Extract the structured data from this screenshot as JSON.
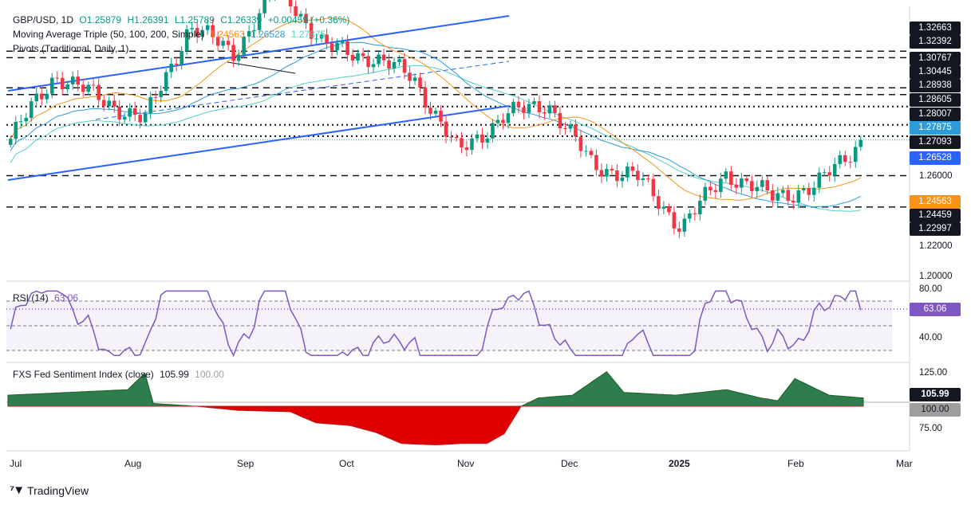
{
  "header": {
    "symbol": "GBP/USD, 1D",
    "ohlc": {
      "o": "O1.25879",
      "h": "H1.26391",
      "l": "L1.25789",
      "c": "C1.26339",
      "chg": "+0.00459 (+0.36%)"
    },
    "ma_label": "Moving Average Triple (50, 100, 200, Simple)",
    "ma_values": [
      "1.24563",
      "1.26528",
      "1.27875"
    ],
    "pivots_label": "Pivots (Traditional, Daily, 1)",
    "rsi_label": "RSI (14)",
    "rsi_value": "63.06",
    "fxs_label": "FXS Fed Sentiment Index (close)",
    "fxs_value": "105.99",
    "fxs_base": "100.00"
  },
  "colors": {
    "up": "#089981",
    "down": "#f23645",
    "ma50": "#f7931a",
    "ma100": "#2d9cdb",
    "ma200": "#4fd1c5",
    "trend": "#2962ff",
    "rsi": "#7e57c2",
    "fxs_pos": "#2e7d4f",
    "fxs_neg": "#e00000"
  },
  "axes": {
    "price_labels": [
      "1.32663",
      "1.32392",
      "1.30767",
      "1.30445",
      "1.28938",
      "1.28605",
      "1.28007",
      "1.27875",
      "1.27093",
      "1.26528",
      "1.26000",
      "1.24563",
      "1.24459",
      "1.22997",
      "1.22000",
      "1.20000"
    ],
    "rsi_labels": [
      "80.00",
      "40.00"
    ],
    "fxs_labels": [
      "125.00",
      "105.99",
      "100.00",
      "75.00"
    ],
    "x_labels": [
      "Jul",
      "Aug",
      "Sep",
      "Oct",
      "Nov",
      "Dec",
      "2025",
      "Feb",
      "Mar"
    ]
  },
  "brand": "TradingView",
  "chart_data": {
    "type": "candlestick",
    "symbol": "GBP/USD",
    "timeframe": "1D",
    "ylim": [
      1.195,
      1.33
    ],
    "pivot_levels": [
      1.30767,
      1.30445,
      1.28938,
      1.28605,
      1.28007,
      1.27093,
      1.26528,
      1.24563,
      1.22997
    ],
    "close_points": [
      [
        "Jul 1",
        1.264
      ],
      [
        "Jul 15",
        1.296
      ],
      [
        "Aug 1",
        1.284
      ],
      [
        "Aug 8",
        1.273
      ],
      [
        "Aug 27",
        1.32
      ],
      [
        "Sep 10",
        1.307
      ],
      [
        "Sep 26",
        1.341
      ],
      [
        "Oct 3",
        1.31
      ],
      [
        "Oct 15",
        1.305
      ],
      [
        "Nov 6",
        1.295
      ],
      [
        "Nov 20",
        1.257
      ],
      [
        "Dec 1",
        1.275
      ],
      [
        "Dec 10",
        1.282
      ],
      [
        "Dec 20",
        1.251
      ],
      [
        "Jan 2",
        1.245
      ],
      [
        "Jan 13",
        1.22
      ],
      [
        "Jan 23",
        1.247
      ],
      [
        "Feb 3",
        1.235
      ],
      [
        "Feb 10",
        1.24
      ],
      [
        "Feb 18",
        1.263
      ]
    ],
    "rsi": {
      "period": 14,
      "last": 63.06,
      "ylim": [
        30,
        80
      ]
    },
    "fxs_sentiment": {
      "last": 105.99,
      "baseline": 100,
      "ylim": [
        70,
        130
      ]
    }
  }
}
